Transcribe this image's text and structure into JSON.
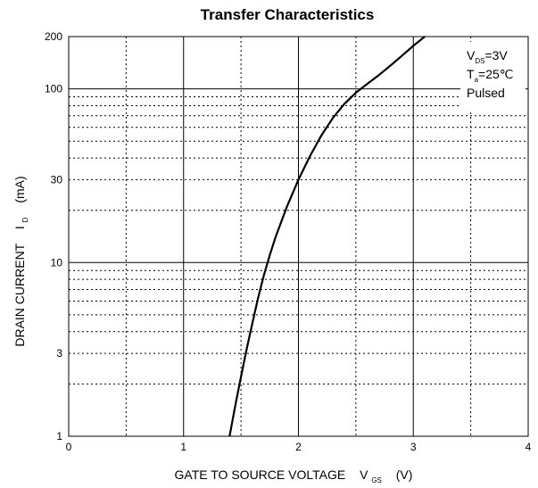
{
  "chart_data": {
    "type": "line",
    "title": "Transfer Characteristics",
    "xlabel": {
      "main": "GATE TO SOURCE VOLTAGE",
      "symbol": "V",
      "subscript": "GS",
      "unit": "(V)"
    },
    "ylabel": {
      "main": "DRAIN CURRENT",
      "symbol": "I",
      "subscript": "D",
      "unit": "(mA)"
    },
    "xlim": [
      0,
      4
    ],
    "ylim": [
      1,
      200
    ],
    "yscale": "log",
    "grid": true,
    "x_ticks": [
      "0",
      "1",
      "2",
      "3",
      "4"
    ],
    "y_ticks": [
      "1",
      "3",
      "10",
      "30",
      "100",
      "200"
    ],
    "conditions": [
      {
        "symbol": "V",
        "subscript": "DS",
        "value": "=3V"
      },
      {
        "symbol": "T",
        "subscript": "a",
        "value": "=25℃"
      },
      {
        "symbol": "",
        "subscript": "",
        "value": "Pulsed"
      }
    ],
    "series": [
      {
        "x": [
          1.4,
          1.45,
          1.5,
          1.55,
          1.6,
          1.65,
          1.7,
          1.75,
          1.8,
          1.9,
          2.0,
          2.1,
          2.2,
          2.3,
          2.4,
          2.5,
          2.6,
          2.7,
          2.8,
          2.9,
          3.0,
          3.1
        ],
        "y": [
          1.0,
          1.5,
          2.2,
          3.2,
          4.5,
          6.3,
          8.5,
          11.0,
          14.0,
          21.0,
          30.0,
          41.0,
          54.0,
          68.0,
          82.0,
          95.0,
          107.0,
          120.0,
          136.0,
          155.0,
          177.0,
          200.0
        ],
        "color": "#000000"
      }
    ]
  }
}
